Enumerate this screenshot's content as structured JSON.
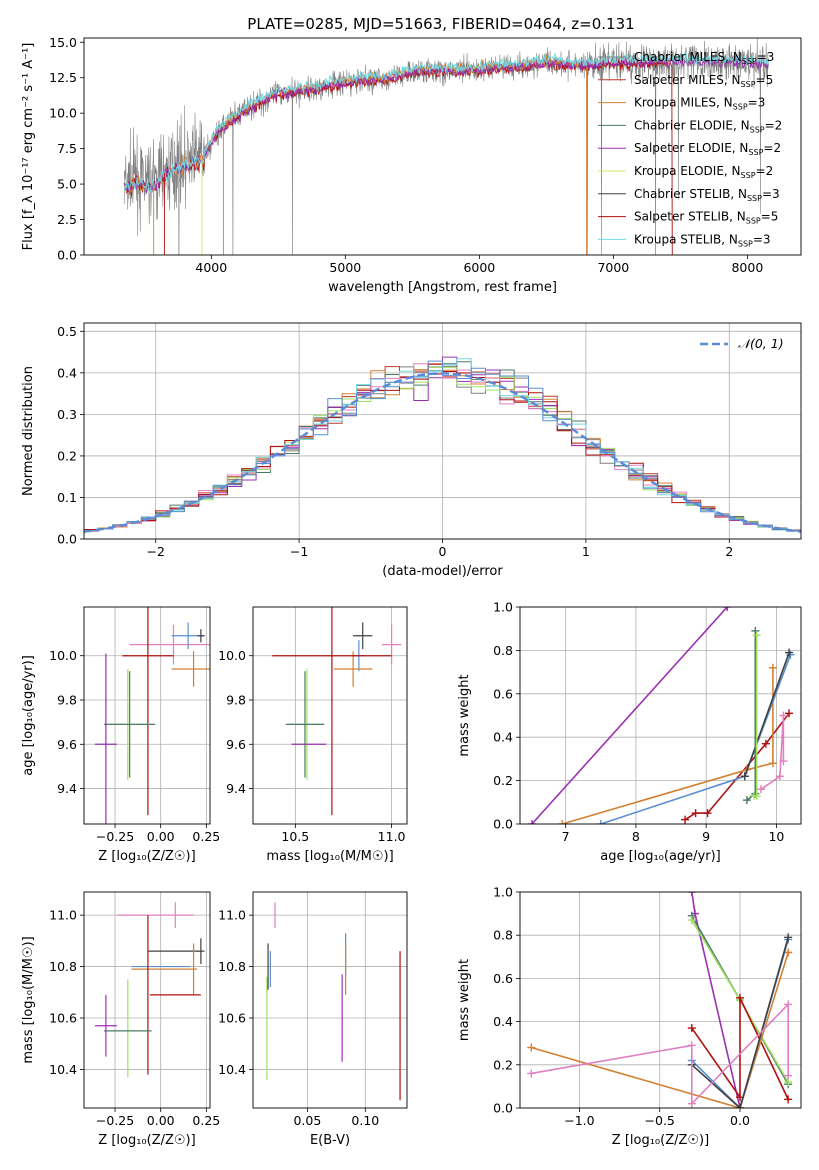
{
  "title": "PLATE=0285, MJD=51663, FIBERID=0464, z=0.131",
  "colors": {
    "miles_chabrier": "#808080",
    "miles_salpeter": "#c0392b",
    "miles_kroupa": "#d38034",
    "elodie_chabrier": "#4a7a6a",
    "elodie_salpeter": "#9b30b0",
    "elodie_kroupa": "#d8e060",
    "stelib_chabrier": "#404040",
    "stelib_salpeter": "#b01010",
    "stelib_kroupa": "#70d8e0",
    "normal": "#5b8ad8",
    "pink": "#e080c0",
    "lime": "#a0e060",
    "olive": "#bcbd22",
    "blue": "#5a8fd0"
  },
  "chart_data": [
    {
      "id": "spectrum",
      "type": "line",
      "xlabel": "wavelength [Angstrom, rest frame]",
      "ylabel": "Flux [f_λ 10⁻¹⁷ erg cm⁻² s⁻¹ A⁻¹]",
      "xlim": [
        3050,
        8400
      ],
      "ylim": [
        0,
        15.3
      ],
      "xticks": [
        "4000",
        "5000",
        "6000",
        "7000",
        "8000"
      ],
      "yticks": [
        "0.0",
        "2.5",
        "5.0",
        "7.5",
        "10.0",
        "12.5",
        "15.0"
      ],
      "legend_position": "right",
      "legend": [
        {
          "label": "Chabrier MILES, N",
          "sub": "SSP",
          "suffix": "=3",
          "color": "miles_chabrier"
        },
        {
          "label": "Salpeter MILES, N",
          "sub": "SSP",
          "suffix": "=5",
          "color": "miles_salpeter"
        },
        {
          "label": "Kroupa MILES, N",
          "sub": "SSP",
          "suffix": "=3",
          "color": "miles_kroupa"
        },
        {
          "label": "Chabrier ELODIE, N",
          "sub": "SSP",
          "suffix": "=2",
          "color": "elodie_chabrier"
        },
        {
          "label": "Salpeter ELODIE, N",
          "sub": "SSP",
          "suffix": "=2",
          "color": "elodie_salpeter"
        },
        {
          "label": "Kroupa ELODIE, N",
          "sub": "SSP",
          "suffix": "=2",
          "color": "elodie_kroupa"
        },
        {
          "label": "Chabrier STELIB, N",
          "sub": "SSP",
          "suffix": "=3",
          "color": "stelib_chabrier"
        },
        {
          "label": "Salpeter STELIB, N",
          "sub": "SSP",
          "suffix": "=5",
          "color": "stelib_salpeter"
        },
        {
          "label": "Kroupa STELIB, N",
          "sub": "SSP",
          "suffix": "=3",
          "color": "stelib_kroupa"
        }
      ],
      "continuum": {
        "x": [
          3350,
          3450,
          3550,
          3650,
          3750,
          3850,
          3950,
          4050,
          4150,
          4300,
          4500,
          4700,
          4900,
          5100,
          5300,
          5500,
          5700,
          5900,
          6100,
          6300,
          6500,
          6700,
          6900,
          7100,
          7300,
          7500,
          7700,
          7900,
          8100,
          8150
        ],
        "y": [
          5.0,
          5.3,
          5.0,
          5.8,
          6.5,
          6.8,
          7.0,
          8.8,
          9.5,
          10.5,
          11.4,
          11.6,
          12.0,
          12.3,
          12.4,
          12.9,
          13.0,
          13.0,
          13.2,
          13.3,
          13.6,
          13.4,
          13.5,
          13.6,
          13.6,
          13.7,
          13.6,
          13.6,
          13.5,
          13.4
        ]
      }
    },
    {
      "id": "residual-hist",
      "type": "line",
      "xlabel": "(data-model)/error",
      "ylabel": "Normed distribution",
      "xlim": [
        -2.5,
        2.5
      ],
      "ylim": [
        0,
        0.52
      ],
      "xticks": [
        "−2",
        "−1",
        "0",
        "1",
        "2"
      ],
      "yticks": [
        "0.0",
        "0.1",
        "0.2",
        "0.3",
        "0.4",
        "0.5"
      ],
      "legend_position": "top-right",
      "legend": [
        {
          "label": "𝒩(0, 1)",
          "color": "normal"
        }
      ],
      "bin_width": 0.1
    },
    {
      "id": "age-vs-z",
      "type": "scatter",
      "xlabel": "Z [log₁₀(Z/Z☉)]",
      "ylabel": "age  [log₁₀(age/yr)]",
      "xlim": [
        -0.42,
        0.27
      ],
      "ylim": [
        9.24,
        10.22
      ],
      "xticks": [
        "−0.25",
        "0.00",
        "0.25"
      ],
      "yticks": [
        "9.4",
        "9.6",
        "9.8",
        "10.0"
      ],
      "points": [
        {
          "x": 0.07,
          "y": 10.05,
          "xe": 0.24,
          "ye": 0.09,
          "color": "pink"
        },
        {
          "x": 0.15,
          "y": 10.09,
          "xe": 0.09,
          "ye": 0.06,
          "color": "blue"
        },
        {
          "x": 0.22,
          "y": 10.09,
          "xe": 0.02,
          "ye": 0.03,
          "color": "stelib_chabrier"
        },
        {
          "x": 0.18,
          "y": 9.94,
          "xe": 0.12,
          "ye": 0.08,
          "color": "miles_kroupa"
        },
        {
          "x": -0.07,
          "y": 10.0,
          "xe": 0.14,
          "ye": 0.72,
          "color": "stelib_salpeter"
        },
        {
          "x": -0.18,
          "y": 9.69,
          "xe": 0.13,
          "ye": 0.25,
          "color": "lime"
        },
        {
          "x": -0.17,
          "y": 9.69,
          "xe": 0.14,
          "ye": 0.24,
          "color": "elodie_chabrier"
        },
        {
          "x": -0.3,
          "y": 9.6,
          "xe": 0.06,
          "ye": 0.41,
          "color": "elodie_salpeter"
        }
      ]
    },
    {
      "id": "age-vs-mass",
      "type": "scatter",
      "xlabel": "mass [log₁₀(M/M☉)]",
      "xlim": [
        10.28,
        11.08
      ],
      "ylim": [
        9.24,
        10.22
      ],
      "xticks": [
        "10.5",
        "11.0"
      ],
      "yticks": [
        "9.4",
        "9.6",
        "9.8",
        "10.0"
      ],
      "points": [
        {
          "x": 11.0,
          "y": 10.05,
          "xe": 0.05,
          "ye": 0.09,
          "color": "pink"
        },
        {
          "x": 10.85,
          "y": 10.09,
          "xe": 0.05,
          "ye": 0.06,
          "color": "stelib_chabrier"
        },
        {
          "x": 10.83,
          "y": 10.0,
          "xe": 0.03,
          "ye": 0.07,
          "color": "blue"
        },
        {
          "x": 10.8,
          "y": 9.94,
          "xe": 0.1,
          "ye": 0.08,
          "color": "miles_kroupa"
        },
        {
          "x": 10.69,
          "y": 10.0,
          "xe": 0.31,
          "ye": 0.72,
          "color": "stelib_salpeter"
        },
        {
          "x": 10.56,
          "y": 9.69,
          "xe": 0.09,
          "ye": 0.25,
          "color": "lime"
        },
        {
          "x": 10.55,
          "y": 9.69,
          "xe": 0.1,
          "ye": 0.24,
          "color": "elodie_chabrier"
        },
        {
          "x": 10.57,
          "y": 9.6,
          "xe": 0.09,
          "ye": 0.0,
          "color": "elodie_salpeter"
        }
      ]
    },
    {
      "id": "weight-vs-age",
      "type": "line",
      "xlabel": "age  [log₁₀(age/yr)]",
      "ylabel": "mass weight",
      "xlim": [
        6.35,
        10.35
      ],
      "ylim": [
        0,
        1
      ],
      "xticks": [
        "7",
        "8",
        "9",
        "10"
      ],
      "yticks": [
        "0.0",
        "0.2",
        "0.4",
        "0.6",
        "0.8",
        "1.0"
      ],
      "series": [
        {
          "color": "elodie_salpeter",
          "x": [
            6.52,
            9.3
          ],
          "y": [
            0.0,
            1.0
          ]
        },
        {
          "color": "stelib_salpeter",
          "x": [
            8.7,
            8.85,
            9.02,
            9.85,
            10.18
          ],
          "y": [
            0.02,
            0.05,
            0.05,
            0.37,
            0.51
          ]
        },
        {
          "color": "miles_kroupa",
          "x": [
            6.95,
            9.58,
            9.95,
            9.95
          ],
          "y": [
            0.0,
            0.25,
            0.28,
            0.72
          ]
        },
        {
          "color": "blue",
          "x": [
            7.5,
            9.55,
            10.2
          ],
          "y": [
            0.0,
            0.22,
            0.78
          ]
        },
        {
          "color": "stelib_chabrier",
          "x": [
            9.55,
            10.18
          ],
          "y": [
            0.22,
            0.79
          ]
        },
        {
          "color": "elodie_chabrier",
          "x": [
            9.58,
            9.7,
            9.7
          ],
          "y": [
            0.11,
            0.14,
            0.89
          ]
        },
        {
          "color": "lime",
          "x": [
            9.68,
            9.72,
            9.72
          ],
          "y": [
            0.13,
            0.13,
            0.87
          ]
        },
        {
          "color": "pink",
          "x": [
            9.78,
            10.05,
            10.1,
            10.1
          ],
          "y": [
            0.16,
            0.22,
            0.5,
            0.29
          ]
        }
      ]
    },
    {
      "id": "mass-vs-z",
      "type": "scatter",
      "xlabel": "Z [log₁₀(Z/Z☉)]",
      "ylabel": "mass [log₁₀(M/M☉)]",
      "xlim": [
        -0.42,
        0.27
      ],
      "ylim": [
        10.25,
        11.09
      ],
      "xticks": [
        "−0.25",
        "0.00",
        "0.25"
      ],
      "yticks": [
        "10.4",
        "10.6",
        "10.8",
        "11.0"
      ],
      "points": [
        {
          "x": -0.03,
          "y": 11.0,
          "xe": 0.21,
          "ye": 0.0,
          "color": "pink"
        },
        {
          "x": 0.08,
          "y": 11.0,
          "xe": 0.0,
          "ye": 0.05,
          "color": "pink"
        },
        {
          "x": 0.22,
          "y": 10.86,
          "xe": 0.02,
          "ye": 0.05,
          "color": "stelib_chabrier"
        },
        {
          "x": 0.07,
          "y": 10.86,
          "xe": 0.14,
          "ye": 0.0,
          "color": "stelib_chabrier"
        },
        {
          "x": 0.0,
          "y": 10.8,
          "xe": 0.16,
          "ye": 0.0,
          "color": "blue"
        },
        {
          "x": 0.18,
          "y": 10.79,
          "xe": 0.02,
          "ye": 0.1,
          "color": "miles_kroupa"
        },
        {
          "x": 0.0,
          "y": 10.79,
          "xe": 0.16,
          "ye": 0.0,
          "color": "miles_kroupa"
        },
        {
          "x": 0.08,
          "y": 10.69,
          "xe": 0.14,
          "ye": 0.0,
          "color": "stelib_salpeter"
        },
        {
          "x": -0.07,
          "y": 10.69,
          "xe": 0.0,
          "ye": 0.31,
          "color": "stelib_salpeter"
        },
        {
          "x": -0.18,
          "y": 10.56,
          "xe": 0.0,
          "ye": 0.19,
          "color": "lime"
        },
        {
          "x": -0.18,
          "y": 10.55,
          "xe": 0.13,
          "ye": 0.0,
          "color": "elodie_chabrier"
        },
        {
          "x": -0.3,
          "y": 10.57,
          "xe": 0.06,
          "ye": 0.12,
          "color": "elodie_salpeter"
        },
        {
          "x": -0.17,
          "y": 10.55,
          "xe": 0.0,
          "ye": 0.0,
          "color": "blue"
        }
      ]
    },
    {
      "id": "mass-vs-ebv",
      "type": "scatter",
      "xlabel": "E(B-V)",
      "xlim": [
        0.003,
        0.136
      ],
      "ylim": [
        10.25,
        11.09
      ],
      "xticks": [
        "0.05",
        "0.10"
      ],
      "yticks": [
        "10.4",
        "10.6",
        "10.8",
        "11.0"
      ],
      "points": [
        {
          "x": 0.022,
          "y": 11.0,
          "xe": 0.0,
          "ye": 0.05,
          "color": "pink"
        },
        {
          "x": 0.016,
          "y": 10.8,
          "xe": 0.0,
          "ye": 0.09,
          "color": "stelib_chabrier"
        },
        {
          "x": 0.018,
          "y": 10.79,
          "xe": 0.0,
          "ye": 0.07,
          "color": "blue"
        },
        {
          "x": 0.015,
          "y": 10.56,
          "xe": 0.0,
          "ye": 0.2,
          "color": "lime"
        },
        {
          "x": 0.083,
          "y": 10.85,
          "xe": 0.0,
          "ye": 0.08,
          "color": "blue"
        },
        {
          "x": 0.083,
          "y": 10.79,
          "xe": 0.0,
          "ye": 0.1,
          "color": "miles_kroupa"
        },
        {
          "x": 0.08,
          "y": 10.6,
          "xe": 0.0,
          "ye": 0.17,
          "color": "elodie_salpeter"
        },
        {
          "x": 0.13,
          "y": 10.57,
          "xe": 0.0,
          "ye": 0.29,
          "color": "stelib_salpeter"
        }
      ]
    },
    {
      "id": "weight-vs-z",
      "type": "line",
      "xlabel": "Z [log₁₀(Z/Z☉)]",
      "ylabel": "mass weight",
      "xlim": [
        -1.37,
        0.38
      ],
      "ylim": [
        0,
        1
      ],
      "xticks": [
        "−1.0",
        "−0.5",
        "0.0"
      ],
      "yticks": [
        "0.0",
        "0.2",
        "0.4",
        "0.6",
        "0.8",
        "1.0"
      ],
      "series": [
        {
          "color": "elodie_salpeter",
          "x": [
            -0.3,
            -0.28,
            0.0
          ],
          "y": [
            1.0,
            0.9,
            0.0
          ]
        },
        {
          "color": "elodie_chabrier",
          "x": [
            -0.3,
            0.0,
            0.3
          ],
          "y": [
            0.89,
            0.5,
            0.11
          ]
        },
        {
          "color": "lime",
          "x": [
            -0.3,
            0.0,
            0.3
          ],
          "y": [
            0.87,
            0.5,
            0.12
          ]
        },
        {
          "color": "stelib_salpeter",
          "x": [
            -0.3,
            0.0,
            0.0,
            0.3
          ],
          "y": [
            0.37,
            0.05,
            0.51,
            0.04
          ]
        },
        {
          "color": "miles_kroupa",
          "x": [
            -1.3,
            0.0,
            0.3,
            0.3
          ],
          "y": [
            0.28,
            0.0,
            0.72,
            0.72
          ]
        },
        {
          "color": "blue",
          "x": [
            -0.3,
            0.0,
            0.3
          ],
          "y": [
            0.22,
            0.0,
            0.78
          ]
        },
        {
          "color": "stelib_chabrier",
          "x": [
            -0.3,
            0.0,
            0.3
          ],
          "y": [
            0.2,
            0.0,
            0.79
          ]
        },
        {
          "color": "pink",
          "x": [
            -1.3,
            -0.3,
            -0.3,
            0.3,
            0.3
          ],
          "y": [
            0.16,
            0.29,
            0.02,
            0.48,
            0.15
          ]
        }
      ]
    }
  ]
}
